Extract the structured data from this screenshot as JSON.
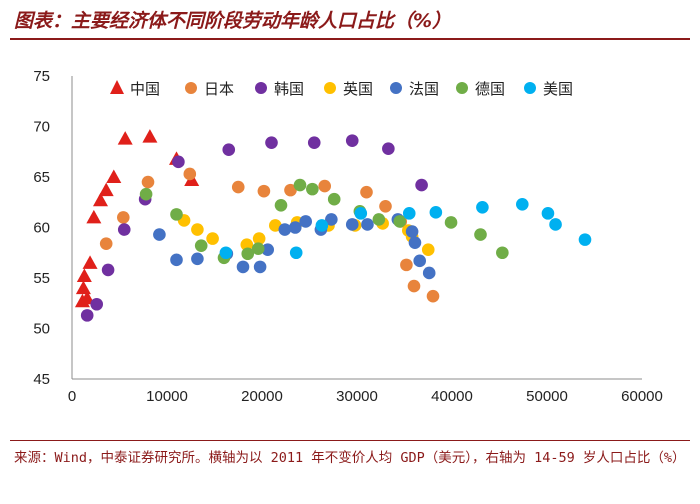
{
  "title": "图表：主要经济体不同阶段劳动年龄人口占比（%）",
  "source": "来源：Wind，中泰证券研究所。横轴为以 2011 年不变价人均 GDP（美元），右轴为 14-59 岁人口占比（%）",
  "colors": {
    "brand": "#8b1a1a",
    "中国": "#e0201a",
    "日本": "#e8843c",
    "韩国": "#7030a0",
    "英国": "#ffc000",
    "法国": "#4472c4",
    "德国": "#70ad47",
    "美国": "#00b0f0"
  },
  "chart_data": {
    "type": "scatter",
    "title": "图表：主要经济体不同阶段劳动年龄人口占比（%）",
    "xlabel": "",
    "ylabel": "",
    "xlim": [
      0,
      60000
    ],
    "ylim": [
      45,
      75
    ],
    "xticks": [
      "0",
      "10000",
      "20000",
      "30000",
      "40000",
      "50000",
      "60000"
    ],
    "yticks": [
      "45",
      "50",
      "55",
      "60",
      "65",
      "70",
      "75"
    ],
    "grid": false,
    "legend_position": "top",
    "series": [
      {
        "name": "中国",
        "marker": "triangle",
        "points": [
          [
            1100,
            52.7
          ],
          [
            1200,
            54
          ],
          [
            1300,
            55.2
          ],
          [
            1600,
            53
          ],
          [
            1900,
            56.5
          ],
          [
            2300,
            61
          ],
          [
            3000,
            62.7
          ],
          [
            3600,
            63.7
          ],
          [
            4400,
            65
          ],
          [
            5600,
            68.8
          ],
          [
            8200,
            69
          ],
          [
            11000,
            66.8
          ],
          [
            12600,
            64.7
          ]
        ]
      },
      {
        "name": "日本",
        "marker": "circle",
        "points": [
          [
            3600,
            58.4
          ],
          [
            5400,
            61
          ],
          [
            8000,
            64.5
          ],
          [
            12400,
            65.3
          ],
          [
            17500,
            64
          ],
          [
            20200,
            63.6
          ],
          [
            23000,
            63.7
          ],
          [
            26600,
            64.1
          ],
          [
            31000,
            63.5
          ],
          [
            33000,
            62.1
          ],
          [
            34600,
            60.6
          ],
          [
            35200,
            56.3
          ],
          [
            36000,
            54.2
          ],
          [
            38000,
            53.2
          ]
        ]
      },
      {
        "name": "韩国",
        "marker": "circle",
        "points": [
          [
            1600,
            51.3
          ],
          [
            2600,
            52.4
          ],
          [
            3800,
            55.8
          ],
          [
            5500,
            59.8
          ],
          [
            7700,
            62.8
          ],
          [
            11200,
            66.5
          ],
          [
            16500,
            67.7
          ],
          [
            21000,
            68.4
          ],
          [
            25500,
            68.4
          ],
          [
            29500,
            68.6
          ],
          [
            33300,
            67.8
          ],
          [
            36800,
            64.2
          ]
        ]
      },
      {
        "name": "英国",
        "marker": "circle",
        "points": [
          [
            11800,
            60.7
          ],
          [
            13200,
            59.8
          ],
          [
            14800,
            58.9
          ],
          [
            18400,
            58.3
          ],
          [
            19700,
            58.9
          ],
          [
            21400,
            60.2
          ],
          [
            23700,
            60.5
          ],
          [
            27000,
            60.2
          ],
          [
            29800,
            60.2
          ],
          [
            32700,
            60.4
          ],
          [
            35400,
            59.7
          ],
          [
            35800,
            59.1
          ],
          [
            37500,
            57.8
          ]
        ]
      },
      {
        "name": "法国",
        "marker": "circle",
        "points": [
          [
            9200,
            59.3
          ],
          [
            11000,
            56.8
          ],
          [
            13200,
            56.9
          ],
          [
            16300,
            57.4
          ],
          [
            18000,
            56.1
          ],
          [
            19800,
            56.1
          ],
          [
            20600,
            57.8
          ],
          [
            22400,
            59.8
          ],
          [
            23500,
            60
          ],
          [
            24600,
            60.6
          ],
          [
            26200,
            59.8
          ],
          [
            27300,
            60.8
          ],
          [
            29500,
            60.3
          ],
          [
            31100,
            60.3
          ],
          [
            34300,
            60.8
          ],
          [
            35800,
            59.6
          ],
          [
            36100,
            58.5
          ],
          [
            36600,
            56.7
          ],
          [
            37600,
            55.5
          ]
        ]
      },
      {
        "name": "德国",
        "marker": "circle",
        "points": [
          [
            7800,
            63.3
          ],
          [
            11000,
            61.3
          ],
          [
            13600,
            58.2
          ],
          [
            16000,
            57
          ],
          [
            18500,
            57.4
          ],
          [
            19600,
            57.9
          ],
          [
            22000,
            62.2
          ],
          [
            24000,
            64.2
          ],
          [
            25300,
            63.8
          ],
          [
            27600,
            62.8
          ],
          [
            30300,
            61.6
          ],
          [
            32300,
            60.8
          ],
          [
            34500,
            60.6
          ],
          [
            39900,
            60.5
          ],
          [
            43000,
            59.3
          ],
          [
            45300,
            57.5
          ]
        ]
      },
      {
        "name": "美国",
        "marker": "circle",
        "points": [
          [
            16200,
            57.5
          ],
          [
            23600,
            57.5
          ],
          [
            26300,
            60.2
          ],
          [
            30400,
            61.4
          ],
          [
            35500,
            61.4
          ],
          [
            38300,
            61.5
          ],
          [
            43200,
            62
          ],
          [
            47400,
            62.3
          ],
          [
            50100,
            61.4
          ],
          [
            50900,
            60.3
          ],
          [
            54000,
            58.8
          ]
        ]
      }
    ]
  }
}
